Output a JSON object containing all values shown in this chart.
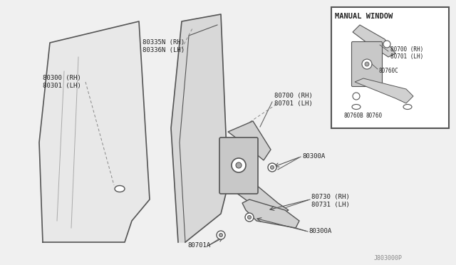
{
  "bg_color": "#f0f0f0",
  "border_color": "#cccccc",
  "line_color": "#555555",
  "text_color": "#222222",
  "title": "",
  "watermark": "J803000P",
  "labels": {
    "80300_rh": "80300 (RH)",
    "80301_lh": "80301 (LH)",
    "80335n_rh": "80335N (RH)",
    "80336n_lh": "80336N (LH)",
    "80700_rh_main": "80700 (RH)",
    "80701_lh_main": "80701 (LH)",
    "80300a_1": "80300A",
    "80730_rh": "80730 (RH)",
    "80731_lh": "80731 (LH)",
    "80300a_2": "80300A",
    "80701a": "80701A",
    "manual_window": "MANUAL WINDOW",
    "80700_rh_inset": "80700 (RH)",
    "80701_lh_inset": "80701 (LH)",
    "80760c": "80760C",
    "80760b": "80760B",
    "80760": "80760"
  }
}
